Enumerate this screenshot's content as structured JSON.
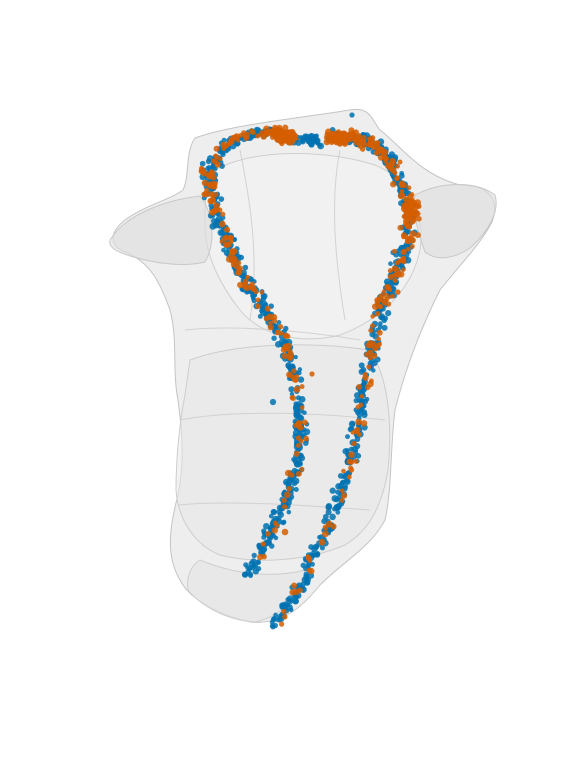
{
  "figure": {
    "background": "#ffffff",
    "mesh_color": "#d9d9d9",
    "mesh_outline": "#bdbdbd",
    "series": [
      {
        "color": "#0072b2"
      },
      {
        "color": "#d55e00"
      }
    ]
  }
}
